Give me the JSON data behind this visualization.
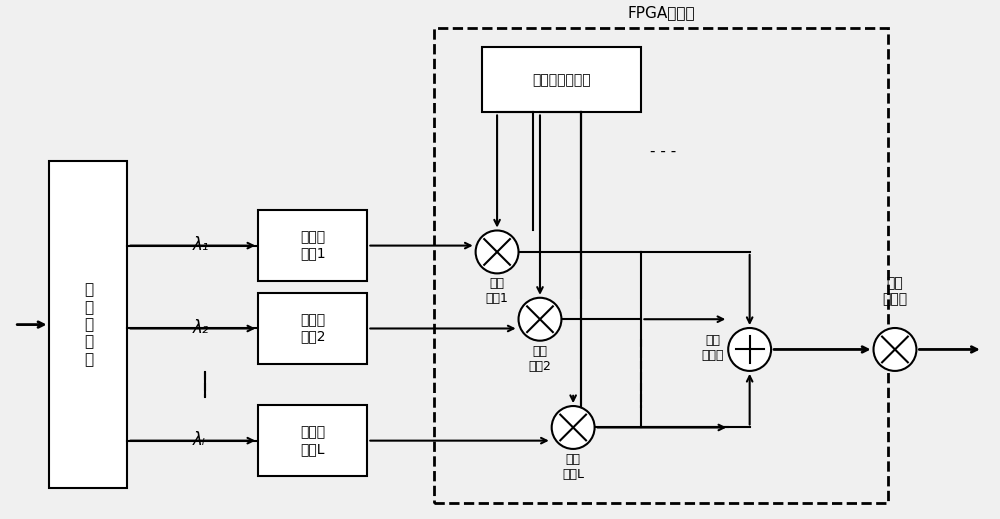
{
  "bg_color": "#f0f0f0",
  "fig_width": 10.0,
  "fig_height": 5.19,
  "fpga_label": "FPGA解码器",
  "spread_label": "扩频码字运算器",
  "wavemux_label": "波\n分\n复\n用\n器",
  "det1_label": "光电检\n测全1",
  "det2_label": "光电检\n测全2",
  "detL_label": "光电检\n测器L",
  "mult1_label": "解码\n乘法1",
  "mult2_label": "解码\n乘法2",
  "multL_label": "解码\n乘法L",
  "add_label": "解码\n加法器",
  "weight_label": "权重\n乘法器",
  "lambda1": "λ₁",
  "lambda2": "λ₂",
  "lambdaL": "λₗ"
}
